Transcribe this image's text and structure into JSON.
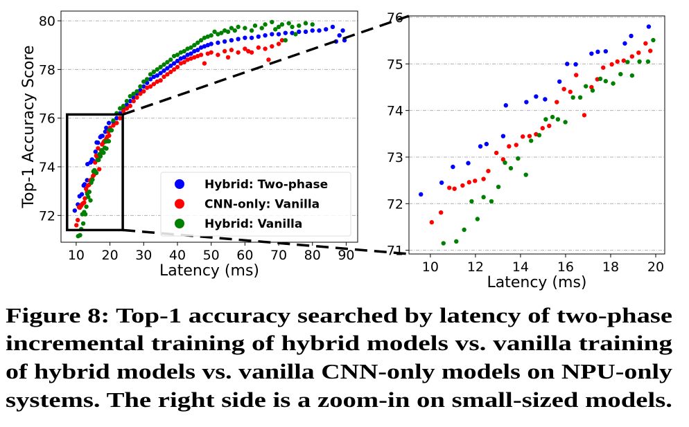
{
  "colors": {
    "Hybrid: Two-phase": "#0000ff",
    "CNN-only: Vanilla": "#ff0000",
    "Hybrid: Vanilla": "#008000"
  },
  "caption": [
    "Figure 8: Top-1 accuracy searched by latency of two-phase",
    "incremental training of hybrid models vs. vanilla training",
    "of hybrid models vs. vanilla CNN-only models on NPU-only",
    "systems. The right side is a zoom-in on small-sized models."
  ],
  "chart_data": [
    {
      "type": "scatter",
      "title": "",
      "xlabel": "Latency (ms)",
      "ylabel": "Top-1 Accuracy Score",
      "xlim": [
        5.5,
        93.4
      ],
      "ylim": [
        70.9,
        80.4
      ],
      "xticks": [
        10,
        20,
        30,
        40,
        50,
        60,
        70,
        80,
        90
      ],
      "yticks": [
        72,
        74,
        76,
        78,
        80
      ],
      "grid": "y-dashed",
      "legend": {
        "placement": "lower-right",
        "entries": [
          "Hybrid: Two-phase",
          "CNN-only: Vanilla",
          "Hybrid: Vanilla"
        ]
      },
      "zoom_box": {
        "x": [
          7.3,
          23.8
        ],
        "y": [
          71.4,
          76.15
        ]
      },
      "note_points": "includes all points of the zoom-in panel plus the points below",
      "series": [
        {
          "name": "Hybrid: Two-phase",
          "points": [
            [
              21,
              75.85
            ],
            [
              22,
              76.0
            ],
            [
              23,
              76.2
            ],
            [
              24,
              76.4
            ],
            [
              25,
              76.55
            ],
            [
              26,
              76.7
            ],
            [
              27,
              76.85
            ],
            [
              28,
              77.0
            ],
            [
              29,
              77.15
            ],
            [
              30,
              77.3
            ],
            [
              31,
              77.45
            ],
            [
              32,
              77.6
            ],
            [
              33,
              77.7
            ],
            [
              34,
              77.75
            ],
            [
              35,
              77.85
            ],
            [
              36,
              77.95
            ],
            [
              37,
              78.05
            ],
            [
              38,
              78.15
            ],
            [
              39,
              78.25
            ],
            [
              40,
              78.35
            ],
            [
              41,
              78.45
            ],
            [
              42,
              78.5
            ],
            [
              43,
              78.6
            ],
            [
              44,
              78.65
            ],
            [
              45,
              78.75
            ],
            [
              46,
              78.8
            ],
            [
              47,
              78.9
            ],
            [
              48,
              78.95
            ],
            [
              49,
              79.0
            ],
            [
              50,
              79.05
            ],
            [
              52,
              79.1
            ],
            [
              54,
              79.15
            ],
            [
              56,
              79.2
            ],
            [
              58,
              79.25
            ],
            [
              60,
              79.3
            ],
            [
              62,
              79.3
            ],
            [
              64,
              79.35
            ],
            [
              66,
              79.4
            ],
            [
              68,
              79.45
            ],
            [
              70,
              79.45
            ],
            [
              72,
              79.5
            ],
            [
              74,
              79.5
            ],
            [
              76,
              79.55
            ],
            [
              78,
              79.55
            ],
            [
              80,
              79.6
            ],
            [
              82,
              79.6
            ],
            [
              84,
              79.65
            ],
            [
              86,
              79.75
            ],
            [
              87,
              79.15
            ],
            [
              88,
              79.4
            ],
            [
              89,
              79.6
            ],
            [
              89.5,
              79.2
            ]
          ]
        },
        {
          "name": "CNN-only: Vanilla",
          "points": [
            [
              20,
              75.6
            ],
            [
              21,
              75.7
            ],
            [
              22,
              75.8
            ],
            [
              23,
              76.0
            ],
            [
              24,
              76.3
            ],
            [
              25,
              76.4
            ],
            [
              26,
              76.5
            ],
            [
              27,
              76.7
            ],
            [
              28,
              76.85
            ],
            [
              29,
              77.0
            ],
            [
              30,
              77.1
            ],
            [
              31,
              77.25
            ],
            [
              32,
              77.3
            ],
            [
              33,
              77.4
            ],
            [
              34,
              77.5
            ],
            [
              35,
              77.55
            ],
            [
              36,
              77.7
            ],
            [
              37,
              77.8
            ],
            [
              38,
              77.9
            ],
            [
              39,
              78.0
            ],
            [
              40,
              78.1
            ],
            [
              41,
              78.25
            ],
            [
              42,
              78.3
            ],
            [
              43,
              78.4
            ],
            [
              44,
              78.45
            ],
            [
              45,
              78.5
            ],
            [
              46,
              78.55
            ],
            [
              47,
              78.6
            ],
            [
              48,
              78.25
            ],
            [
              49,
              78.65
            ],
            [
              50,
              78.7
            ],
            [
              52,
              78.6
            ],
            [
              54,
              78.75
            ],
            [
              55,
              78.5
            ],
            [
              56,
              78.8
            ],
            [
              58,
              78.7
            ],
            [
              60,
              78.85
            ],
            [
              61,
              78.75
            ],
            [
              62,
              78.7
            ],
            [
              64,
              78.9
            ],
            [
              66,
              78.85
            ],
            [
              67,
              78.4
            ],
            [
              68,
              78.95
            ],
            [
              70,
              79.05
            ],
            [
              71,
              79.2
            ]
          ]
        },
        {
          "name": "Hybrid: Vanilla",
          "points": [
            [
              20.5,
              75.5
            ],
            [
              21,
              75.9
            ],
            [
              22,
              76.2
            ],
            [
              23,
              76.4
            ],
            [
              24,
              76.5
            ],
            [
              25,
              76.7
            ],
            [
              26,
              76.9
            ],
            [
              27,
              77.0
            ],
            [
              28,
              77.1
            ],
            [
              29,
              77.3
            ],
            [
              30,
              77.5
            ],
            [
              31,
              77.6
            ],
            [
              32,
              77.8
            ],
            [
              33,
              77.9
            ],
            [
              34,
              78.0
            ],
            [
              35,
              78.1
            ],
            [
              36,
              78.2
            ],
            [
              37,
              78.3
            ],
            [
              38,
              78.4
            ],
            [
              39,
              78.55
            ],
            [
              40,
              78.6
            ],
            [
              41,
              78.7
            ],
            [
              42,
              78.75
            ],
            [
              43,
              78.85
            ],
            [
              44,
              78.9
            ],
            [
              45,
              79.0
            ],
            [
              46,
              79.1
            ],
            [
              47,
              79.2
            ],
            [
              48,
              79.3
            ],
            [
              49,
              79.35
            ],
            [
              50,
              79.4
            ],
            [
              51,
              79.55
            ],
            [
              52,
              79.45
            ],
            [
              53,
              79.5
            ],
            [
              54,
              79.6
            ],
            [
              55,
              79.55
            ],
            [
              56,
              79.7
            ],
            [
              57,
              79.6
            ],
            [
              58,
              79.75
            ],
            [
              60,
              79.7
            ],
            [
              62,
              79.6
            ],
            [
              63,
              79.8
            ],
            [
              65,
              79.7
            ],
            [
              66,
              79.85
            ],
            [
              68,
              79.95
            ],
            [
              69,
              79.65
            ],
            [
              70,
              79.75
            ],
            [
              71,
              79.85
            ],
            [
              72,
              79.2
            ],
            [
              73,
              79.9
            ],
            [
              74,
              79.75
            ],
            [
              75,
              79.45
            ],
            [
              76,
              79.8
            ],
            [
              78,
              79.9
            ],
            [
              80,
              79.85
            ]
          ]
        }
      ]
    },
    {
      "type": "scatter",
      "title": "",
      "xlabel": "Latency (ms)",
      "ylabel": "",
      "xlim": [
        9.05,
        20.4
      ],
      "ylim": [
        70.92,
        76.03
      ],
      "xticks": [
        10,
        12,
        14,
        16,
        18,
        20
      ],
      "yticks": [
        71,
        72,
        73,
        74,
        75,
        76
      ],
      "grid": "y-dashed",
      "series": [
        {
          "name": "Hybrid: Two-phase",
          "points": [
            [
              9.58,
              72.2
            ],
            [
              10.5,
              72.45
            ],
            [
              11.0,
              72.79
            ],
            [
              11.68,
              72.87
            ],
            [
              12.22,
              73.23
            ],
            [
              12.49,
              73.28
            ],
            [
              13.23,
              73.45
            ],
            [
              13.35,
              74.11
            ],
            [
              14.26,
              74.18
            ],
            [
              14.69,
              74.3
            ],
            [
              15.09,
              74.24
            ],
            [
              15.73,
              74.62
            ],
            [
              16.07,
              75.0
            ],
            [
              16.45,
              74.99
            ],
            [
              17.15,
              75.22
            ],
            [
              17.43,
              75.26
            ],
            [
              17.78,
              75.27
            ],
            [
              18.63,
              75.44
            ],
            [
              18.91,
              75.6
            ],
            [
              19.69,
              75.8
            ]
          ]
        },
        {
          "name": "CNN-only: Vanilla",
          "points": [
            [
              10.06,
              71.6
            ],
            [
              10.47,
              71.81
            ],
            [
              10.84,
              72.34
            ],
            [
              11.07,
              72.32
            ],
            [
              11.43,
              72.39
            ],
            [
              11.72,
              72.46
            ],
            [
              11.98,
              72.49
            ],
            [
              12.36,
              72.53
            ],
            [
              12.57,
              72.7
            ],
            [
              12.93,
              73.09
            ],
            [
              13.23,
              72.95
            ],
            [
              13.49,
              73.23
            ],
            [
              13.81,
              73.26
            ],
            [
              14.1,
              73.44
            ],
            [
              14.4,
              73.45
            ],
            [
              14.69,
              73.49
            ],
            [
              14.98,
              73.62
            ],
            [
              15.27,
              73.67
            ],
            [
              15.61,
              74.18
            ],
            [
              15.93,
              74.46
            ],
            [
              16.21,
              74.4
            ],
            [
              16.47,
              74.76
            ],
            [
              16.83,
              73.9
            ],
            [
              17.15,
              74.5
            ],
            [
              17.41,
              74.67
            ],
            [
              17.67,
              74.92
            ],
            [
              18.05,
              74.99
            ],
            [
              18.3,
              75.05
            ],
            [
              18.58,
              75.07
            ],
            [
              18.95,
              75.16
            ],
            [
              19.24,
              75.24
            ],
            [
              19.55,
              75.44
            ],
            [
              19.76,
              75.28
            ]
          ]
        },
        {
          "name": "Hybrid: Vanilla",
          "points": [
            [
              10.58,
              71.15
            ],
            [
              11.15,
              71.19
            ],
            [
              11.5,
              71.44
            ],
            [
              11.83,
              72.05
            ],
            [
              12.09,
              71.67
            ],
            [
              12.36,
              72.14
            ],
            [
              12.71,
              72.05
            ],
            [
              13.02,
              72.36
            ],
            [
              13.31,
              72.88
            ],
            [
              13.57,
              72.76
            ],
            [
              13.89,
              72.97
            ],
            [
              14.24,
              72.62
            ],
            [
              14.47,
              73.35
            ],
            [
              14.83,
              73.47
            ],
            [
              15.12,
              73.81
            ],
            [
              15.42,
              73.86
            ],
            [
              15.66,
              73.81
            ],
            [
              15.99,
              73.75
            ],
            [
              16.33,
              74.28
            ],
            [
              16.65,
              74.28
            ],
            [
              16.9,
              74.52
            ],
            [
              17.2,
              74.43
            ],
            [
              17.54,
              74.68
            ],
            [
              17.78,
              74.63
            ],
            [
              18.11,
              74.58
            ],
            [
              18.44,
              74.78
            ],
            [
              18.75,
              75.04
            ],
            [
              18.95,
              74.75
            ],
            [
              19.28,
              75.05
            ],
            [
              19.66,
              75.05
            ],
            [
              19.89,
              75.51
            ]
          ]
        }
      ]
    }
  ]
}
